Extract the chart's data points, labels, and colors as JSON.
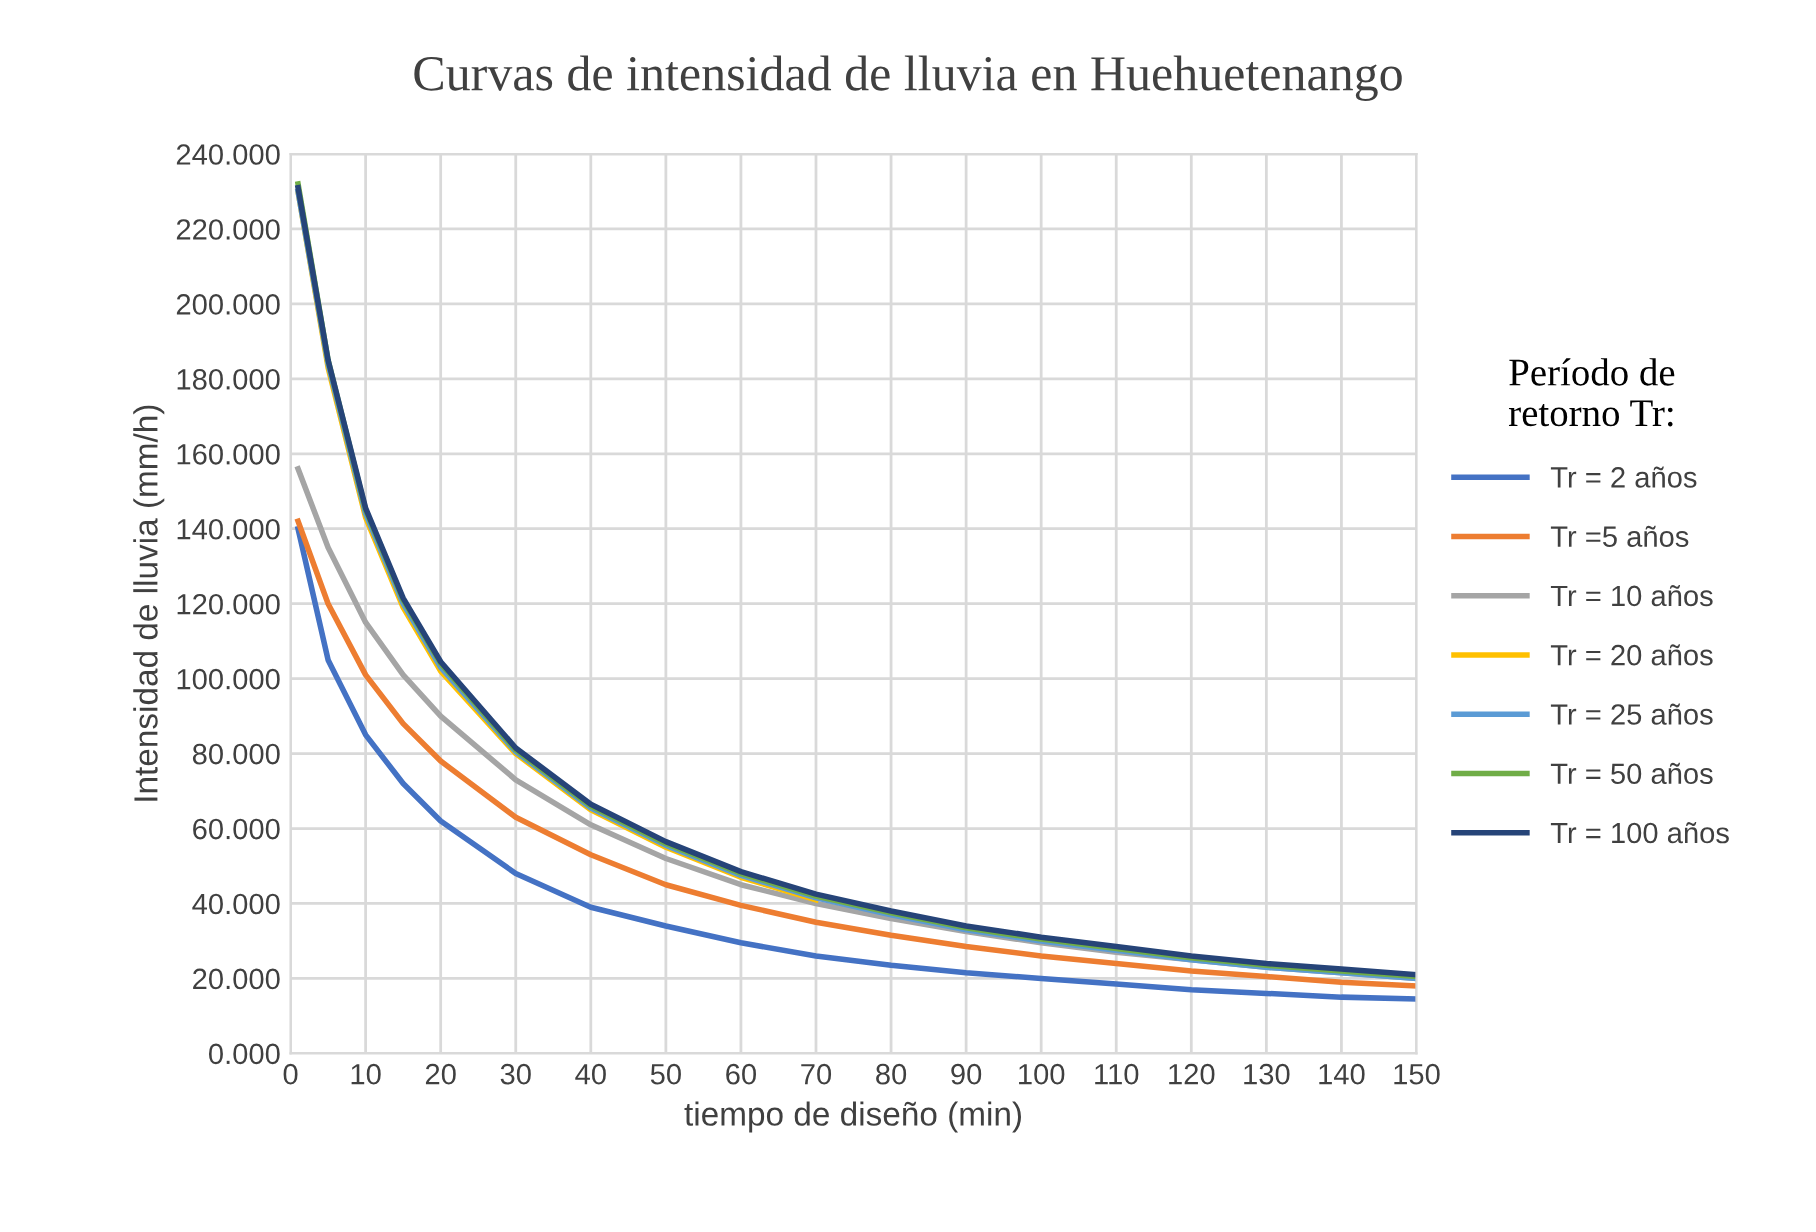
{
  "chart_data": {
    "type": "line",
    "title": "Curvas de intensidad de lluvia en Huehuetenango",
    "xlabel": "tiempo de diseño (min)",
    "ylabel": "Intensidad de lluvia (mm/h)",
    "legend_title": "Período de\nretorno Tr:",
    "legend": "right",
    "grid": true,
    "marker": "none",
    "line_style": "solid",
    "x": [
      1,
      5,
      10,
      15,
      20,
      30,
      40,
      50,
      60,
      70,
      80,
      90,
      100,
      110,
      120,
      130,
      140,
      150
    ],
    "xlim": [
      0,
      150
    ],
    "xticks": [
      0,
      10,
      20,
      30,
      40,
      50,
      60,
      70,
      80,
      90,
      100,
      110,
      120,
      130,
      140,
      150
    ],
    "ylim": [
      0,
      240
    ],
    "yticks": [
      {
        "value": 0,
        "label": "0.000"
      },
      {
        "value": 20,
        "label": "20.000"
      },
      {
        "value": 40,
        "label": "40.000"
      },
      {
        "value": 60,
        "label": "60.000"
      },
      {
        "value": 80,
        "label": "80.000"
      },
      {
        "value": 100,
        "label": "100.000"
      },
      {
        "value": 120,
        "label": "120.000"
      },
      {
        "value": 140,
        "label": "140.000"
      },
      {
        "value": 160,
        "label": "160.000"
      },
      {
        "value": 180,
        "label": "180.000"
      },
      {
        "value": 200,
        "label": "200.000"
      },
      {
        "value": 220,
        "label": "220.000"
      },
      {
        "value": 240,
        "label": "240.000"
      }
    ],
    "series": [
      {
        "name": "Tr = 2 años",
        "color": "#4472c4",
        "values": [
          140,
          105,
          85,
          72,
          62,
          48,
          39,
          34,
          29.5,
          26,
          23.5,
          21.5,
          20,
          18.5,
          17,
          16,
          15,
          14.5
        ]
      },
      {
        "name": "Tr =5 años",
        "color": "#ed7d31",
        "values": [
          142,
          120,
          101,
          88,
          78,
          63,
          53,
          45,
          39.5,
          35,
          31.5,
          28.5,
          26,
          24,
          22,
          20.5,
          19,
          18
        ]
      },
      {
        "name": "Tr = 10 años",
        "color": "#a5a5a5",
        "values": [
          156,
          135,
          115,
          101,
          90,
          73,
          61,
          52,
          45,
          40,
          36,
          32.5,
          29.5,
          27,
          25,
          23,
          21.5,
          20
        ]
      },
      {
        "name": "Tr = 20 años",
        "color": "#ffc000",
        "values": [
          230,
          183,
          143,
          119,
          102,
          80,
          65,
          55,
          47,
          41,
          null,
          null,
          null,
          null,
          null,
          null,
          null,
          null
        ]
      },
      {
        "name": "Tr = 25 años",
        "color": "#5b9bd5",
        "values": [
          230,
          184,
          144,
          120,
          103,
          80.5,
          65.5,
          55.5,
          47.5,
          41.5,
          37,
          33,
          30,
          27.5,
          25,
          23,
          21.5,
          20
        ]
      },
      {
        "name": "Tr = 50 años",
        "color": "#70ad47",
        "values": [
          232,
          185,
          145,
          121,
          104,
          81,
          66,
          56,
          48,
          42,
          37.5,
          33.5,
          30.5,
          28,
          25.5,
          23.5,
          22,
          20.5
        ]
      },
      {
        "name": "Tr = 100 años",
        "color": "#264478",
        "values": [
          231,
          185,
          145.5,
          121.5,
          104.5,
          81.5,
          66.5,
          56.5,
          48.5,
          42.5,
          38,
          34,
          31,
          28.5,
          26,
          24,
          22.5,
          21
        ]
      }
    ]
  }
}
